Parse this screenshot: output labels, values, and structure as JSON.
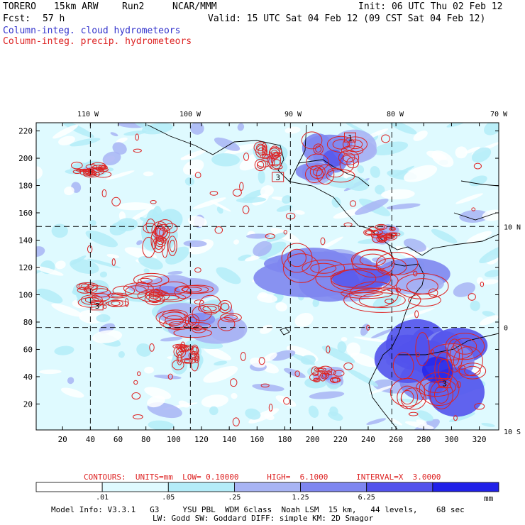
{
  "header": {
    "model": "TORERO",
    "resolution": "15km ARW",
    "run": "Run2",
    "org": "NCAR/MMM",
    "init": "Init: 06 UTC Thu 02 Feb 12",
    "fcst_label": "Fcst:",
    "fcst_value": "57 h",
    "valid": "Valid: 15 UTC Sat 04 Feb 12 (09 CST Sat 04 Feb 12)",
    "field1": "Column-integ. cloud hydrometeors",
    "field2": "Column-integ. precip. hydrometeors",
    "field1_color": "#3333cc",
    "field2_color": "#dd2222"
  },
  "footer": {
    "contours": "CONTOURS:  UNITS=mm  LOW= 0.10000      HIGH=  6.1000      INTERVAL=X  3.0000",
    "unit": "mm",
    "model_info_1": "Model Info: V3.3.1   G3     YSU PBL  WDM 6class  Noah LSM  15 km,   44 levels,    68 sec",
    "model_info_2": "LW: Godd SW: Goddard DIFF: simple KM: 2D Smagor"
  },
  "chart_data": {
    "type": "heatmap",
    "title": "Column-integ. cloud hydrometeors / Column-integ. precip. hydrometeors",
    "x_ticks": [
      20,
      40,
      60,
      80,
      100,
      120,
      140,
      160,
      180,
      200,
      220,
      240,
      260,
      280,
      300,
      320
    ],
    "y_ticks": [
      20,
      40,
      60,
      80,
      100,
      120,
      140,
      160,
      180,
      200,
      220
    ],
    "xlim": [
      1,
      334
    ],
    "ylim": [
      1,
      226
    ],
    "lon_labels": [
      "110 W",
      "100 W",
      "90 W",
      "80 W",
      "70 W"
    ],
    "lon_grid_x": [
      40,
      112,
      184,
      257
    ],
    "lat_labels": [
      "10 N",
      "0",
      "10 S"
    ],
    "lat_grid_y": [
      150,
      76
    ],
    "colorbar": {
      "thresholds": [
        ".01",
        ".05",
        ".25",
        "1.25",
        "6.25"
      ],
      "colors": [
        "#ffffff",
        "#dffaff",
        "#b4ecf8",
        "#a8b4f4",
        "#7e86f0",
        "#5252ec",
        "#2020e8"
      ]
    },
    "contours": {
      "units": "mm",
      "low": 0.1,
      "high": 6.1,
      "interval": 3.0,
      "color": "#dd2222"
    },
    "cloud_regions": [
      {
        "x": 235,
        "y": 112,
        "rx": 60,
        "ry": 22,
        "level": 4
      },
      {
        "x": 215,
        "y": 200,
        "rx": 22,
        "ry": 18,
        "level": 4
      },
      {
        "x": 290,
        "y": 45,
        "rx": 32,
        "ry": 28,
        "level": 5
      },
      {
        "x": 120,
        "y": 82,
        "rx": 28,
        "ry": 14,
        "level": 3
      },
      {
        "x": 95,
        "y": 103,
        "rx": 28,
        "ry": 10,
        "level": 3
      },
      {
        "x": 210,
        "y": 40,
        "rx": 12,
        "ry": 7,
        "level": 3
      },
      {
        "x": 90,
        "y": 145,
        "rx": 12,
        "ry": 16,
        "level": 2
      },
      {
        "x": 40,
        "y": 192,
        "rx": 15,
        "ry": 5,
        "level": 2
      },
      {
        "x": 250,
        "y": 145,
        "rx": 12,
        "ry": 6,
        "level": 3
      },
      {
        "x": 110,
        "y": 55,
        "rx": 10,
        "ry": 10,
        "level": 2
      },
      {
        "x": 50,
        "y": 100,
        "rx": 20,
        "ry": 8,
        "level": 2
      },
      {
        "x": 170,
        "y": 200,
        "rx": 10,
        "ry": 10,
        "level": 2
      }
    ],
    "numbered_boxes": [
      {
        "label": "1",
        "x": 227,
        "y": 215
      },
      {
        "label": "3",
        "x": 175,
        "y": 186
      },
      {
        "label": "3",
        "x": 45,
        "y": 92
      },
      {
        "label": "3",
        "x": 295,
        "y": 35
      }
    ]
  }
}
